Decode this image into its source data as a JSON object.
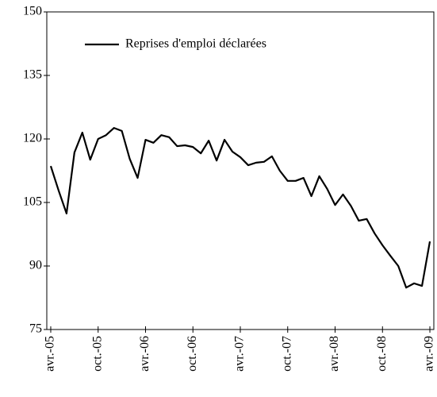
{
  "chart_data": {
    "type": "line",
    "legend_label": "Reprises d'emploi déclarées",
    "categories": [
      "avr.-05",
      null,
      null,
      null,
      null,
      null,
      "oct.-05",
      null,
      null,
      null,
      null,
      null,
      "avr.-06",
      null,
      null,
      null,
      null,
      null,
      "oct.-06",
      null,
      null,
      null,
      null,
      null,
      "avr.-07",
      null,
      null,
      null,
      null,
      null,
      "oct.-07",
      null,
      null,
      null,
      null,
      null,
      "avr.-08",
      null,
      null,
      null,
      null,
      null,
      "oct.-08",
      null,
      null,
      null,
      null,
      null,
      "avr.-09"
    ],
    "series": [
      {
        "name": "Reprises d'emploi déclarées",
        "color": "#000000",
        "values": [
          113.6,
          107.8,
          102.4,
          116.8,
          121.5,
          115.1,
          120,
          120.9,
          122.6,
          121.9,
          115.3,
          110.8,
          119.8,
          119.1,
          120.9,
          120.4,
          118.3,
          118.5,
          118.1,
          116.6,
          119.6,
          114.9,
          119.8,
          117,
          115.7,
          113.8,
          114.4,
          114.6,
          115.9,
          112.5,
          110.1,
          110.1,
          110.8,
          106.5,
          111.2,
          108.2,
          104.4,
          106.9,
          104.2,
          100.7,
          101.1,
          97.7,
          94.9,
          92.4,
          90,
          84.9,
          85.9,
          85.3,
          95.8
        ]
      }
    ],
    "ylim": [
      75,
      150
    ],
    "yticks": [
      75,
      90,
      105,
      120,
      135,
      150
    ],
    "grid": false,
    "legend": "top-left"
  }
}
